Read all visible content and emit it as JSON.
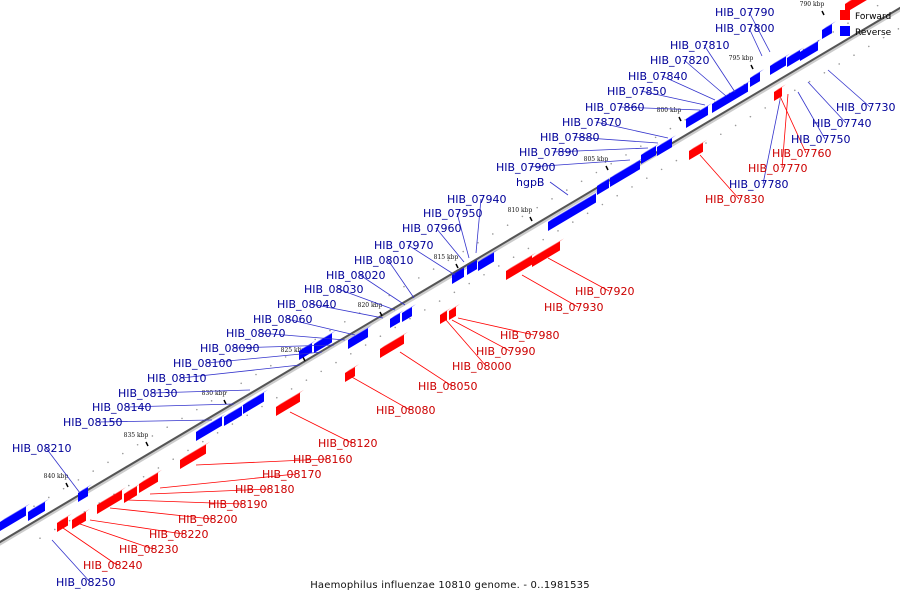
{
  "title": "Haemophilus influenzae 10810 genome. - 0..1981535",
  "legend": {
    "forward_label": "Forward",
    "reverse_label": "Reverse"
  },
  "colors": {
    "forward": "#ff0000",
    "reverse": "#0000ff",
    "forward_label": "#cc0000",
    "reverse_label": "#000099",
    "leader_forward": "#ff0000",
    "leader_reverse": "#3333cc",
    "axis_dark": "#555555",
    "axis_light": "#cccccc"
  },
  "scale_labels": [
    "790 kbp",
    "795 kbp",
    "800 kbp",
    "805 kbp",
    "810 kbp",
    "815 kbp",
    "820 kbp",
    "825 kbp",
    "830 kbp",
    "835 kbp",
    "840 kbp"
  ],
  "reverse_genes": [
    "HIB_07790",
    "HIB_07800",
    "HIB_07810",
    "HIB_07820",
    "HIB_07840",
    "HIB_07850",
    "HIB_07860",
    "HIB_07870",
    "HIB_07880",
    "HIB_07890",
    "HIB_07900",
    "hgpB",
    "HIB_07940",
    "HIB_07950",
    "HIB_07960",
    "HIB_07970",
    "HIB_08010",
    "HIB_08020",
    "HIB_08030",
    "HIB_08040",
    "HIB_08060",
    "HIB_08070",
    "HIB_08090",
    "HIB_08100",
    "HIB_08110",
    "HIB_08130",
    "HIB_08140",
    "HIB_08150",
    "HIB_08210",
    "HIB_07730",
    "HIB_07740",
    "HIB_07750",
    "HIB_07780",
    "HIB_08250"
  ],
  "forward_genes": [
    "HIB_07760",
    "HIB_07770",
    "HIB_07830",
    "HIB_07920",
    "HIB_07930",
    "HIB_07980",
    "HIB_07990",
    "HIB_08000",
    "HIB_08050",
    "HIB_08080",
    "HIB_08120",
    "HIB_08160",
    "HIB_08170",
    "HIB_08180",
    "HIB_08190",
    "HIB_08200",
    "HIB_08220",
    "HIB_08230",
    "HIB_08240"
  ]
}
